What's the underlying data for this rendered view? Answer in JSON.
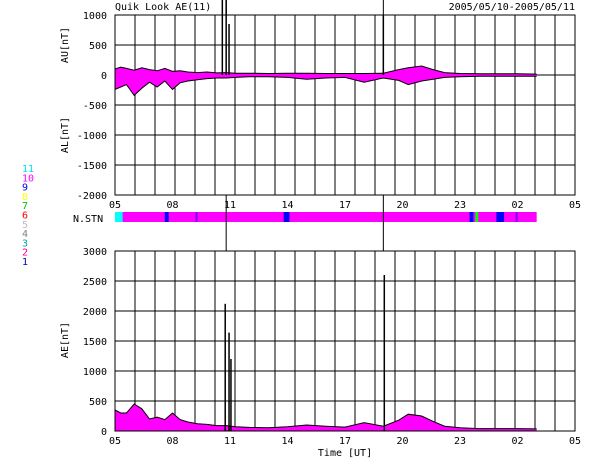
{
  "header": {
    "title": "Quik Look AE(11)",
    "date_range": "2005/05/10-2005/05/11"
  },
  "colors": {
    "fill": "#ff00ff",
    "line": "#000000",
    "stn_base": "#ff00ff",
    "stn_blue": "#0000ff",
    "stn_cyan": "#00ffff",
    "stn_green": "#00ff00",
    "stn_purple": "#8000ff"
  },
  "legend": {
    "items": [
      {
        "label": "11",
        "color": "#00e0e0"
      },
      {
        "label": "10",
        "color": "#ff00ff"
      },
      {
        "label": "9",
        "color": "#0000ff"
      },
      {
        "label": "8",
        "color": "#ffff00"
      },
      {
        "label": "7",
        "color": "#00c000"
      },
      {
        "label": "6",
        "color": "#ff0000"
      },
      {
        "label": "5",
        "color": "#c0c0c0"
      },
      {
        "label": "4",
        "color": "#808080"
      },
      {
        "label": "3",
        "color": "#00a0a0"
      },
      {
        "label": "2",
        "color": "#ff0080"
      },
      {
        "label": "1",
        "color": "#0000a0"
      }
    ]
  },
  "stn_label": "N.STN",
  "xlabel": "Time [UT]",
  "x_tick_labels": [
    "05",
    "08",
    "11",
    "14",
    "17",
    "20",
    "23",
    "02",
    "05"
  ],
  "chart_data": [
    {
      "type": "area",
      "ylabel_upper": "AU[nT]",
      "ylabel_lower": "AL[nT]",
      "ylim": [
        -2000,
        1000
      ],
      "y_tick_labels": [
        "1000",
        "500",
        "0",
        "-500",
        "-1000",
        "-1500",
        "-2000"
      ],
      "xlim_hours": [
        5,
        29
      ],
      "x_hours": [
        5.0,
        5.3,
        5.6,
        6.0,
        6.4,
        6.8,
        7.2,
        7.6,
        8.0,
        8.4,
        8.8,
        9.3,
        9.8,
        10.3,
        10.8,
        11.3,
        12.0,
        13.0,
        14.0,
        15.0,
        16.0,
        17.0,
        18.0,
        19.0,
        19.8,
        20.3,
        21.0,
        21.6,
        22.2,
        23.0,
        24.0,
        25.0,
        26.0,
        27.0
      ],
      "au_values": [
        100,
        130,
        110,
        80,
        120,
        90,
        70,
        110,
        60,
        70,
        50,
        40,
        50,
        35,
        40,
        30,
        30,
        25,
        30,
        30,
        25,
        25,
        25,
        30,
        90,
        120,
        150,
        90,
        40,
        25,
        20,
        20,
        20,
        15
      ],
      "al_values": [
        -240,
        -200,
        -160,
        -340,
        -220,
        -120,
        -200,
        -100,
        -240,
        -130,
        -100,
        -80,
        -60,
        -50,
        -50,
        -40,
        -30,
        -30,
        -40,
        -70,
        -50,
        -40,
        -120,
        -50,
        -90,
        -160,
        -100,
        -70,
        -40,
        -30,
        -20,
        -20,
        -20,
        -20
      ],
      "spikes": [
        {
          "x": 10.6,
          "value": 1300
        },
        {
          "x": 10.8,
          "value": 1600
        },
        {
          "x": 10.95,
          "value": 850
        },
        {
          "x": 19.0,
          "value": 1000
        }
      ]
    },
    {
      "type": "area",
      "ylabel": "AE[nT]",
      "ylim": [
        0,
        3000
      ],
      "y_tick_labels": [
        "3000",
        "2500",
        "2000",
        "1500",
        "1000",
        "500",
        "0"
      ],
      "xlim_hours": [
        5,
        29
      ],
      "x_hours": [
        5.0,
        5.3,
        5.6,
        6.0,
        6.4,
        6.8,
        7.2,
        7.6,
        8.0,
        8.4,
        8.8,
        9.3,
        9.8,
        10.3,
        10.8,
        11.3,
        12.0,
        13.0,
        14.0,
        15.0,
        16.0,
        17.0,
        18.0,
        19.0,
        19.8,
        20.3,
        21.0,
        21.6,
        22.2,
        23.0,
        24.0,
        25.0,
        26.0,
        27.0
      ],
      "ae_values": [
        350,
        300,
        300,
        450,
        370,
        200,
        230,
        190,
        300,
        190,
        150,
        120,
        110,
        90,
        90,
        70,
        60,
        55,
        70,
        100,
        80,
        65,
        140,
        80,
        180,
        280,
        250,
        160,
        80,
        55,
        40,
        40,
        40,
        35
      ],
      "spikes": [
        {
          "x": 10.75,
          "value": 2120
        },
        {
          "x": 10.95,
          "value": 1640
        },
        {
          "x": 11.05,
          "value": 1200
        },
        {
          "x": 19.05,
          "value": 2600
        }
      ]
    }
  ],
  "stn_bar": {
    "xlim_hours": [
      5,
      29
    ],
    "end_hour": 27,
    "base_color": "#ff00ff",
    "segments": [
      {
        "from": 5.0,
        "to": 5.4,
        "color": "#00ffff"
      },
      {
        "from": 7.6,
        "to": 7.8,
        "color": "#0000ff"
      },
      {
        "from": 9.2,
        "to": 9.3,
        "color": "#8000ff"
      },
      {
        "from": 13.8,
        "to": 14.1,
        "color": "#0000ff"
      },
      {
        "from": 23.5,
        "to": 23.7,
        "color": "#0000ff"
      },
      {
        "from": 23.8,
        "to": 23.95,
        "color": "#00ff00"
      },
      {
        "from": 24.9,
        "to": 25.3,
        "color": "#0000ff"
      },
      {
        "from": 25.9,
        "to": 26.0,
        "color": "#8000ff"
      }
    ]
  },
  "vertical_markers": [
    {
      "x": 10.8
    },
    {
      "x": 19.0
    }
  ]
}
